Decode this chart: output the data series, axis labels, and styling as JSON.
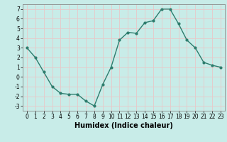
{
  "x": [
    0,
    1,
    2,
    3,
    4,
    5,
    6,
    7,
    8,
    9,
    10,
    11,
    12,
    13,
    14,
    15,
    16,
    17,
    18,
    19,
    20,
    21,
    22,
    23
  ],
  "y": [
    3.0,
    2.0,
    0.5,
    -1.0,
    -1.7,
    -1.8,
    -1.8,
    -2.5,
    -3.0,
    -0.8,
    1.0,
    3.8,
    4.6,
    4.5,
    5.6,
    5.8,
    7.0,
    7.0,
    5.5,
    3.8,
    3.0,
    1.5,
    1.2,
    1.0
  ],
  "line_color": "#2e7d6e",
  "marker": "o",
  "marker_size": 2.0,
  "line_width": 1.0,
  "bg_color": "#c8ece8",
  "grid_color": "#e8c8c8",
  "xlabel": "Humidex (Indice chaleur)",
  "xlabel_fontsize": 7,
  "xlim": [
    -0.5,
    23.5
  ],
  "ylim": [
    -3.5,
    7.5
  ],
  "yticks": [
    -3,
    -2,
    -1,
    0,
    1,
    2,
    3,
    4,
    5,
    6,
    7
  ],
  "xticks": [
    0,
    1,
    2,
    3,
    4,
    5,
    6,
    7,
    8,
    9,
    10,
    11,
    12,
    13,
    14,
    15,
    16,
    17,
    18,
    19,
    20,
    21,
    22,
    23
  ],
  "tick_fontsize": 5.5,
  "tick_color": "#000000",
  "spine_color": "#888888"
}
